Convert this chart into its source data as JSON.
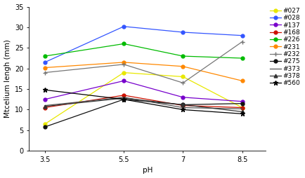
{
  "x": [
    3.5,
    5.5,
    7.0,
    8.5
  ],
  "series": {
    "#027": {
      "values": [
        6.5,
        19.0,
        18.0,
        10.5
      ],
      "color": "#e8e800",
      "marker": "o",
      "linestyle": "-",
      "msize": 3.5
    },
    "#028": {
      "values": [
        21.5,
        30.2,
        28.8,
        28.0
      ],
      "color": "#3355ff",
      "marker": "o",
      "linestyle": "-",
      "msize": 3.5
    },
    "#137": {
      "values": [
        12.5,
        17.0,
        13.0,
        12.0
      ],
      "color": "#7700cc",
      "marker": "o",
      "linestyle": "-",
      "msize": 3.5
    },
    "#168": {
      "values": [
        10.5,
        13.5,
        11.0,
        10.5
      ],
      "color": "#cc1100",
      "marker": "o",
      "linestyle": "-",
      "msize": 3.5
    },
    "#226": {
      "values": [
        23.0,
        26.0,
        23.0,
        22.5
      ],
      "color": "#00bb00",
      "marker": "o",
      "linestyle": "-",
      "msize": 3.5
    },
    "#231": {
      "values": [
        20.2,
        21.5,
        20.5,
        17.0
      ],
      "color": "#ff8800",
      "marker": "o",
      "linestyle": "-",
      "msize": 3.5
    },
    "#232": {
      "values": [
        19.0,
        21.0,
        16.5,
        26.5
      ],
      "color": "#777777",
      "marker": "+",
      "linestyle": "-",
      "msize": 5
    },
    "#275": {
      "values": [
        5.8,
        12.5,
        11.2,
        11.5
      ],
      "color": "#111111",
      "marker": "o",
      "linestyle": "-",
      "msize": 3.5
    },
    "#373": {
      "values": [
        11.0,
        13.0,
        10.5,
        10.2
      ],
      "color": "#555555",
      "marker": "None",
      "linestyle": "-",
      "msize": 0
    },
    "#378": {
      "values": [
        10.8,
        12.8,
        11.2,
        9.5
      ],
      "color": "#333333",
      "marker": "^",
      "linestyle": "-",
      "msize": 3.5
    },
    "#560": {
      "values": [
        14.8,
        12.5,
        10.0,
        9.0
      ],
      "color": "#000000",
      "marker": "*",
      "linestyle": "-",
      "msize": 5
    }
  },
  "xlabel": "pH",
  "ylabel": "Mtcelium lengh (mm)",
  "ylim": [
    0,
    35
  ],
  "xticks": [
    3.5,
    5.5,
    7.0,
    8.5
  ],
  "yticks": [
    0,
    5,
    10,
    15,
    20,
    25,
    30,
    35
  ],
  "axis_fontsize": 7.5,
  "tick_fontsize": 7,
  "legend_fontsize": 6.5,
  "linewidth": 0.9,
  "background_color": "#ffffff"
}
